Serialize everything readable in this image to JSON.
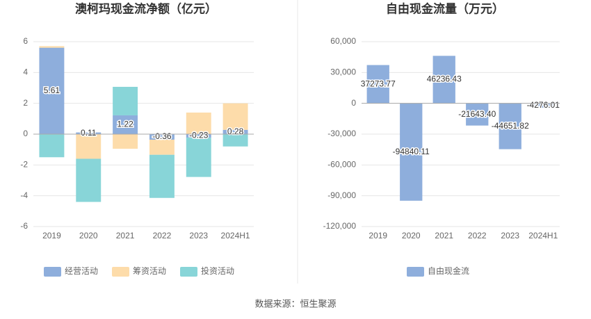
{
  "chart_data": [
    {
      "type": "stacked-bar",
      "title": "澳柯玛现金流净额（亿元）",
      "categories": [
        "2019",
        "2020",
        "2021",
        "2022",
        "2023",
        "2024H1"
      ],
      "series": [
        {
          "name": "经营活动",
          "color": "#8eaedc",
          "values": [
            5.61,
            0.11,
            1.22,
            -0.36,
            -0.23,
            0.28
          ]
        },
        {
          "name": "筹资活动",
          "color": "#fddcaa",
          "values": [
            0.1,
            -1.6,
            -0.95,
            -0.98,
            1.4,
            1.72
          ]
        },
        {
          "name": "投资活动",
          "color": "#88d5d8",
          "values": [
            -1.5,
            -2.8,
            1.85,
            -2.8,
            -2.55,
            -0.8
          ]
        }
      ],
      "labeled_series": 0,
      "ylim": [
        -6,
        6
      ],
      "yticks": [
        -6,
        -4,
        -2,
        0,
        2,
        4,
        6
      ],
      "grid": true
    },
    {
      "type": "bar",
      "title": "自由现金流量（万元）",
      "categories": [
        "2019",
        "2020",
        "2021",
        "2022",
        "2023",
        "2024H1"
      ],
      "series": [
        {
          "name": "自由现金流",
          "color": "#8eaedc",
          "values": [
            37273.77,
            -94840.11,
            46236.43,
            -21643.4,
            -44651.82,
            -4276.01
          ],
          "value_labels": [
            "37273.77",
            "-94840.11",
            "46236.43",
            "-21643.40",
            "-44651.82",
            "-4276.01"
          ]
        }
      ],
      "labeled_series": 0,
      "ylim": [
        -120000,
        60000
      ],
      "yticks": [
        {
          "value": -120000,
          "label": "-120,000"
        },
        {
          "value": -90000,
          "label": "-90,000"
        },
        {
          "value": -60000,
          "label": "-60,000"
        },
        {
          "value": -30000,
          "label": "-30,000"
        },
        0,
        {
          "value": 30000,
          "label": "30,000"
        },
        {
          "value": 60000,
          "label": "60,000"
        }
      ],
      "grid": true
    }
  ],
  "source": "数据来源：恒生聚源"
}
